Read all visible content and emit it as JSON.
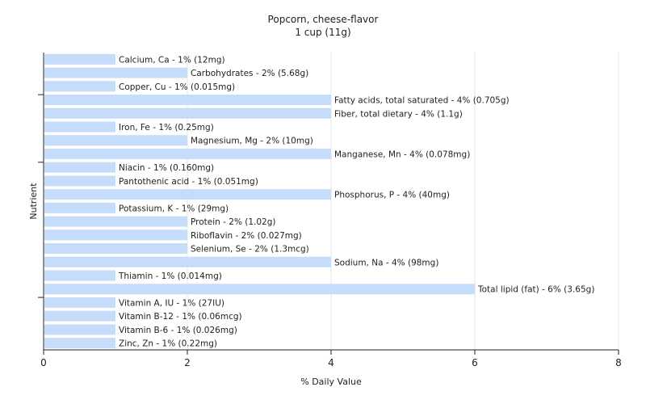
{
  "chart_data": {
    "type": "bar",
    "orientation": "horizontal",
    "title": "Popcorn, cheese-flavor",
    "subtitle": "1 cup (11g)",
    "xlabel": "% Daily Value",
    "ylabel": "Nutrient",
    "xlim": [
      0,
      8
    ],
    "xticks": [
      0,
      2,
      4,
      6,
      8
    ],
    "grid": true,
    "bar_color": "#c6dcfb",
    "bars": [
      {
        "name": "Calcium, Ca",
        "value": 1,
        "label": "Calcium, Ca - 1% (12mg)"
      },
      {
        "name": "Carbohydrates",
        "value": 2,
        "label": "Carbohydrates - 2% (5.68g)"
      },
      {
        "name": "Copper, Cu",
        "value": 1,
        "label": "Copper, Cu - 1% (0.015mg)"
      },
      {
        "name": "Fatty acids, total saturated",
        "value": 4,
        "label": "Fatty acids, total saturated - 4% (0.705g)"
      },
      {
        "name": "Fiber, total dietary",
        "value": 4,
        "label": "Fiber, total dietary - 4% (1.1g)"
      },
      {
        "name": "Iron, Fe",
        "value": 1,
        "label": "Iron, Fe - 1% (0.25mg)"
      },
      {
        "name": "Magnesium, Mg",
        "value": 2,
        "label": "Magnesium, Mg - 2% (10mg)"
      },
      {
        "name": "Manganese, Mn",
        "value": 4,
        "label": "Manganese, Mn - 4% (0.078mg)"
      },
      {
        "name": "Niacin",
        "value": 1,
        "label": "Niacin - 1% (0.160mg)"
      },
      {
        "name": "Pantothenic acid",
        "value": 1,
        "label": "Pantothenic acid - 1% (0.051mg)"
      },
      {
        "name": "Phosphorus, P",
        "value": 4,
        "label": "Phosphorus, P - 4% (40mg)"
      },
      {
        "name": "Potassium, K",
        "value": 1,
        "label": "Potassium, K - 1% (29mg)"
      },
      {
        "name": "Protein",
        "value": 2,
        "label": "Protein - 2% (1.02g)"
      },
      {
        "name": "Riboflavin",
        "value": 2,
        "label": "Riboflavin - 2% (0.027mg)"
      },
      {
        "name": "Selenium, Se",
        "value": 2,
        "label": "Selenium, Se - 2% (1.3mcg)"
      },
      {
        "name": "Sodium, Na",
        "value": 4,
        "label": "Sodium, Na - 4% (98mg)"
      },
      {
        "name": "Thiamin",
        "value": 1,
        "label": "Thiamin - 1% (0.014mg)"
      },
      {
        "name": "Total lipid (fat)",
        "value": 6,
        "label": "Total lipid (fat) - 6% (3.65g)"
      },
      {
        "name": "Vitamin A, IU",
        "value": 1,
        "label": "Vitamin A, IU - 1% (27IU)"
      },
      {
        "name": "Vitamin B-12",
        "value": 1,
        "label": "Vitamin B-12 - 1% (0.06mcg)"
      },
      {
        "name": "Vitamin B-6",
        "value": 1,
        "label": "Vitamin B-6 - 1% (0.026mg)"
      },
      {
        "name": "Zinc, Zn",
        "value": 1,
        "label": "Zinc, Zn - 1% (0.22mg)"
      }
    ]
  }
}
